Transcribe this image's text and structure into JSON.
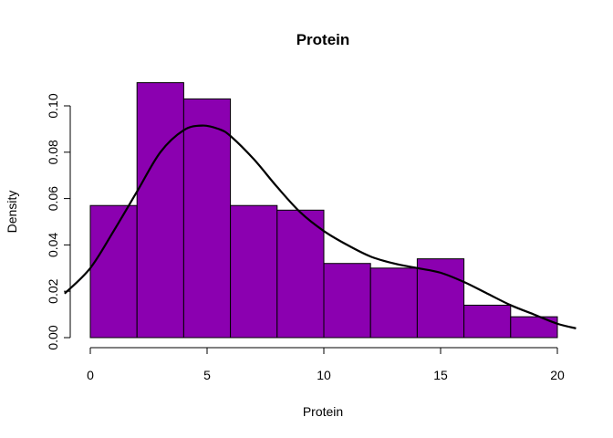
{
  "chart_data": {
    "type": "bar",
    "title": "Protein",
    "xlabel": "Protein",
    "ylabel": "Density",
    "xlim": [
      -1.1,
      20.8
    ],
    "ylim": [
      0,
      0.11
    ],
    "x_ticks": [
      0,
      5,
      10,
      15,
      20
    ],
    "y_ticks": [
      0.0,
      0.02,
      0.04,
      0.06,
      0.08,
      0.1
    ],
    "x_tick_labels": [
      "0",
      "5",
      "10",
      "15",
      "20"
    ],
    "y_tick_labels": [
      "0.00",
      "0.02",
      "0.04",
      "0.06",
      "0.08",
      "0.10"
    ],
    "bin_edges": [
      0,
      2,
      4,
      6,
      8,
      10,
      12,
      14,
      16,
      18,
      20
    ],
    "values": [
      0.057,
      0.11,
      0.103,
      0.057,
      0.055,
      0.032,
      0.03,
      0.034,
      0.014,
      0.009
    ],
    "bar_color": "#8B00B0",
    "density_curve": {
      "x": [
        -1.1,
        0,
        1,
        2,
        3,
        4,
        4.8,
        5.5,
        6,
        7,
        8,
        9,
        10,
        11,
        12,
        13,
        14,
        15,
        16,
        17,
        18,
        19,
        20,
        20.8
      ],
      "y": [
        0.019,
        0.03,
        0.046,
        0.063,
        0.08,
        0.0895,
        0.0915,
        0.09,
        0.087,
        0.077,
        0.065,
        0.054,
        0.046,
        0.04,
        0.035,
        0.032,
        0.03,
        0.028,
        0.024,
        0.019,
        0.014,
        0.01,
        0.006,
        0.004
      ]
    },
    "grid": false
  }
}
